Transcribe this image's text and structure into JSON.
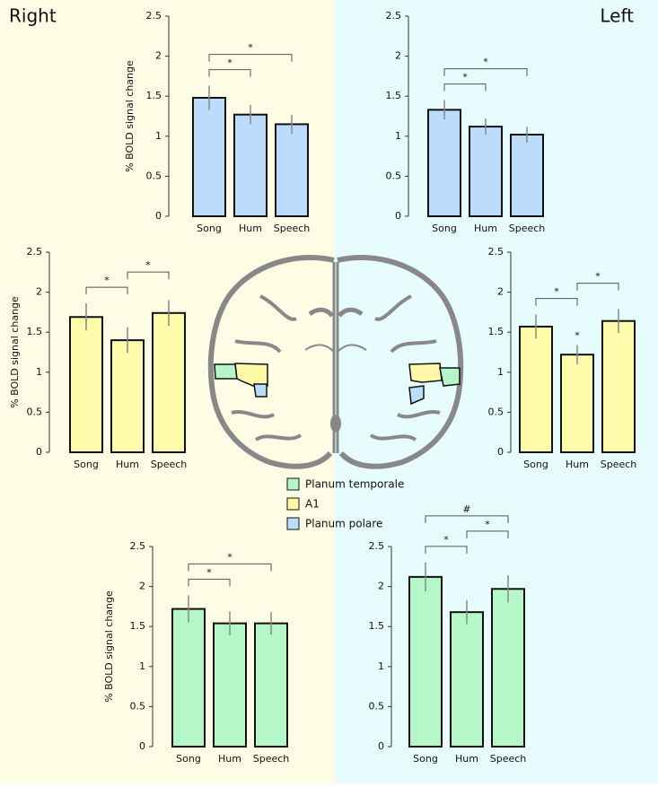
{
  "hemispheres": {
    "right": "Right",
    "left": "Left"
  },
  "legend": {
    "items": [
      {
        "name": "Planum temporale",
        "color": "#b5f5c8"
      },
      {
        "name": "A1",
        "color": "#fdf9a8"
      },
      {
        "name": "Planum polare",
        "color": "#bcdcf8"
      }
    ]
  },
  "chart_data": [
    {
      "type": "bar",
      "ylabel": "% BOLD signal change",
      "categories": [
        "Song",
        "Hum",
        "Speech"
      ],
      "values": [
        1.48,
        1.27,
        1.15
      ],
      "errors": [
        0.15,
        0.12,
        0.12
      ],
      "color": "#bcdcfb",
      "ylim": [
        0,
        2.5
      ],
      "yticks": [
        0,
        0.5,
        1,
        1.5,
        2,
        2.5
      ],
      "brackets": [
        {
          "between": [
            "Song",
            "Hum"
          ],
          "label": "*"
        },
        {
          "between": [
            "Song",
            "Speech"
          ],
          "label": "*"
        }
      ]
    },
    {
      "type": "bar",
      "categories": [
        "Song",
        "Hum",
        "Speech"
      ],
      "values": [
        1.33,
        1.12,
        1.02
      ],
      "errors": [
        0.12,
        0.1,
        0.1
      ],
      "color": "#bcdcfb",
      "ylim": [
        0,
        2.5
      ],
      "yticks": [
        0,
        0.5,
        1,
        1.5,
        2,
        2.5
      ],
      "brackets": [
        {
          "between": [
            "Song",
            "Hum"
          ],
          "label": "*"
        },
        {
          "between": [
            "Song",
            "Speech"
          ],
          "label": "*"
        }
      ]
    },
    {
      "type": "bar",
      "ylabel": "% BOLD signal change",
      "categories": [
        "Song",
        "Hum",
        "Speech"
      ],
      "values": [
        1.69,
        1.4,
        1.74
      ],
      "errors": [
        0.17,
        0.16,
        0.16
      ],
      "color": "#fffcab",
      "ylim": [
        0,
        2.5
      ],
      "yticks": [
        0,
        0.5,
        1,
        1.5,
        2,
        2.5
      ],
      "brackets": [
        {
          "between": [
            "Song",
            "Hum"
          ],
          "label": "*"
        },
        {
          "between": [
            "Hum",
            "Speech"
          ],
          "label": "*"
        }
      ]
    },
    {
      "type": "bar",
      "categories": [
        "Song",
        "Hum",
        "Speech"
      ],
      "values": [
        1.57,
        1.22,
        1.64
      ],
      "errors": [
        0.15,
        0.12,
        0.15
      ],
      "color": "#fffcab",
      "ylim": [
        0,
        2.5
      ],
      "yticks": [
        0,
        0.5,
        1,
        1.5,
        2,
        2.5
      ],
      "brackets": [
        {
          "between": [
            "Song",
            "Hum"
          ],
          "label": "*"
        },
        {
          "between": [
            "Hum",
            "Speech"
          ],
          "label": "*"
        }
      ],
      "point_annotations": [
        {
          "category": "Hum",
          "label": "*"
        }
      ]
    },
    {
      "type": "bar",
      "ylabel": "% BOLD signal change",
      "categories": [
        "Song",
        "Hum",
        "Speech"
      ],
      "values": [
        1.72,
        1.54,
        1.54
      ],
      "errors": [
        0.17,
        0.15,
        0.14
      ],
      "color": "#b5f7c6",
      "ylim": [
        0,
        2.5
      ],
      "yticks": [
        0,
        0.5,
        1,
        1.5,
        2,
        2.5
      ],
      "brackets": [
        {
          "between": [
            "Song",
            "Hum"
          ],
          "label": "*"
        },
        {
          "between": [
            "Song",
            "Speech"
          ],
          "label": "*"
        }
      ]
    },
    {
      "type": "bar",
      "categories": [
        "Song",
        "Hum",
        "Speech"
      ],
      "values": [
        2.12,
        1.68,
        1.97
      ],
      "errors": [
        0.18,
        0.15,
        0.17
      ],
      "color": "#b5f7c6",
      "ylim": [
        0,
        2.5
      ],
      "yticks": [
        0,
        0.5,
        1,
        1.5,
        2,
        2.5
      ],
      "brackets": [
        {
          "between": [
            "Song",
            "Hum"
          ],
          "label": "*"
        },
        {
          "between": [
            "Hum",
            "Speech"
          ],
          "label": "*"
        },
        {
          "between": [
            "Song",
            "Speech"
          ],
          "label": "#"
        }
      ]
    }
  ]
}
